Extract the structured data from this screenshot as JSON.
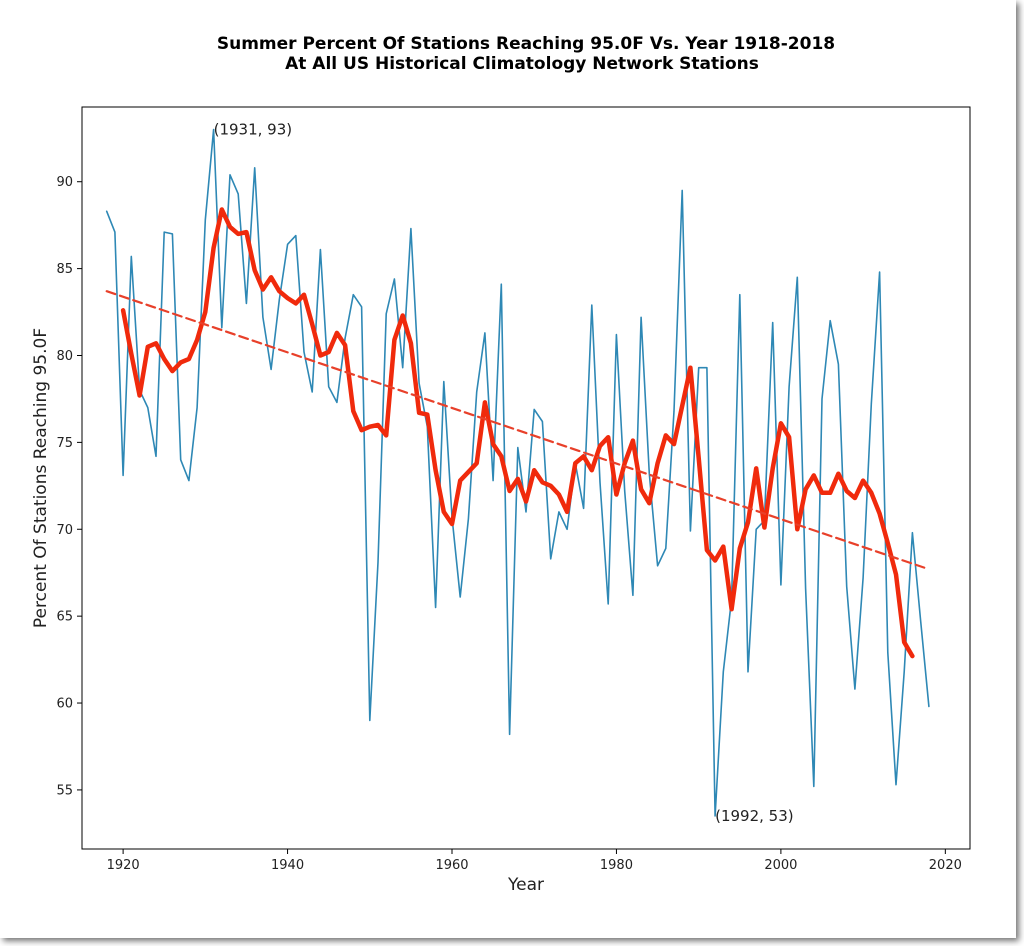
{
  "chart_data": {
    "type": "line",
    "title_lines": [
      "Summer Percent Of Stations Reaching 95.0F Vs. Year 1918-2018",
      "At All US Historical Climatology Network Stations"
    ],
    "xlabel": "Year",
    "ylabel": "Percent Of Stations Reaching 95.0F",
    "xlim": [
      1915,
      2023
    ],
    "ylim": [
      51.6,
      94.3
    ],
    "xticks": [
      1920,
      1940,
      1960,
      1980,
      2000,
      2020
    ],
    "yticks": [
      55,
      60,
      65,
      70,
      75,
      80,
      85,
      90
    ],
    "grid": false,
    "series": [
      {
        "style": "thin-line",
        "color": "#2e88b5",
        "x": [
          1918,
          1919,
          1920,
          1921,
          1922,
          1923,
          1924,
          1925,
          1926,
          1927,
          1928,
          1929,
          1930,
          1931,
          1932,
          1933,
          1934,
          1935,
          1936,
          1937,
          1938,
          1939,
          1940,
          1941,
          1942,
          1943,
          1944,
          1945,
          1946,
          1947,
          1948,
          1949,
          1950,
          1951,
          1952,
          1953,
          1954,
          1955,
          1956,
          1957,
          1958,
          1959,
          1960,
          1961,
          1962,
          1963,
          1964,
          1965,
          1966,
          1967,
          1968,
          1969,
          1970,
          1971,
          1972,
          1973,
          1974,
          1975,
          1976,
          1977,
          1978,
          1979,
          1980,
          1981,
          1982,
          1983,
          1984,
          1985,
          1986,
          1987,
          1988,
          1989,
          1990,
          1991,
          1992,
          1993,
          1994,
          1995,
          1996,
          1997,
          1998,
          1999,
          2000,
          2001,
          2002,
          2003,
          2004,
          2005,
          2006,
          2007,
          2008,
          2009,
          2010,
          2011,
          2012,
          2013,
          2014,
          2015,
          2016,
          2017,
          2018
        ],
        "y": [
          88.3,
          87.1,
          73.1,
          85.7,
          78.0,
          77.0,
          74.2,
          87.1,
          87.0,
          74.0,
          72.8,
          77.0,
          87.8,
          93.0,
          81.6,
          90.4,
          89.3,
          83.0,
          90.8,
          82.2,
          79.2,
          83.2,
          86.4,
          86.9,
          80.2,
          77.9,
          86.1,
          78.2,
          77.3,
          81.0,
          83.5,
          82.8,
          59.0,
          68.1,
          82.4,
          84.4,
          79.3,
          87.3,
          78.4,
          75.9,
          65.5,
          78.5,
          70.7,
          66.1,
          70.6,
          77.9,
          81.3,
          72.8,
          84.1,
          58.2,
          74.7,
          71.0,
          76.9,
          76.2,
          68.3,
          71.0,
          70.0,
          73.8,
          71.2,
          82.9,
          72.7,
          65.7,
          81.2,
          72.2,
          66.2,
          82.2,
          73.2,
          67.9,
          68.9,
          76.8,
          89.5,
          69.9,
          79.3,
          79.3,
          53.5,
          61.8,
          66.0,
          83.5,
          61.8,
          70.0,
          70.5,
          81.9,
          66.8,
          78.2,
          84.5,
          66.6,
          55.2,
          77.5,
          82.0,
          79.5,
          66.7,
          60.8,
          67.2,
          77.2,
          84.8,
          62.9,
          55.3,
          61.8,
          69.8,
          64.7,
          59.8
        ]
      },
      {
        "style": "thick-line",
        "color": "#f02a0c",
        "x": [
          1920,
          1921,
          1922,
          1923,
          1924,
          1925,
          1926,
          1927,
          1928,
          1929,
          1930,
          1931,
          1932,
          1933,
          1934,
          1935,
          1936,
          1937,
          1938,
          1939,
          1940,
          1941,
          1942,
          1943,
          1944,
          1945,
          1946,
          1947,
          1948,
          1949,
          1950,
          1951,
          1952,
          1953,
          1954,
          1955,
          1956,
          1957,
          1958,
          1959,
          1960,
          1961,
          1962,
          1963,
          1964,
          1965,
          1966,
          1967,
          1968,
          1969,
          1970,
          1971,
          1972,
          1973,
          1974,
          1975,
          1976,
          1977,
          1978,
          1979,
          1980,
          1981,
          1982,
          1983,
          1984,
          1985,
          1986,
          1987,
          1988,
          1989,
          1990,
          1991,
          1992,
          1993,
          1994,
          1995,
          1996,
          1997,
          1998,
          1999,
          2000,
          2001,
          2002,
          2003,
          2004,
          2005,
          2006,
          2007,
          2008,
          2009,
          2010,
          2011,
          2012,
          2013,
          2014,
          2015,
          2016
        ],
        "y": [
          82.6,
          80.1,
          77.7,
          80.5,
          80.7,
          79.8,
          79.1,
          79.6,
          79.8,
          80.9,
          82.5,
          86.2,
          88.4,
          87.4,
          87.0,
          87.1,
          84.9,
          83.8,
          84.5,
          83.7,
          83.3,
          83.0,
          83.5,
          81.8,
          80.0,
          80.2,
          81.3,
          80.6,
          76.8,
          75.7,
          75.9,
          76.0,
          75.4,
          80.9,
          82.3,
          80.7,
          76.7,
          76.6,
          73.4,
          71.0,
          70.3,
          72.8,
          73.3,
          73.8,
          77.3,
          74.9,
          74.2,
          72.2,
          72.9,
          71.6,
          73.4,
          72.7,
          72.5,
          72.0,
          71.0,
          73.8,
          74.2,
          73.4,
          74.8,
          75.3,
          72.0,
          73.8,
          75.1,
          72.3,
          71.5,
          73.8,
          75.4,
          74.9,
          77.1,
          79.3,
          74.1,
          68.8,
          68.2,
          69.0,
          65.4,
          68.9,
          70.4,
          73.5,
          70.1,
          73.5,
          76.1,
          75.3,
          70.0,
          72.3,
          73.1,
          72.1,
          72.1,
          73.2,
          72.2,
          71.8,
          72.8,
          72.1,
          70.9,
          69.2,
          67.4,
          63.5,
          62.7
        ]
      },
      {
        "style": "dashed-trend",
        "color": "#e8402a",
        "x": [
          1918,
          2018
        ],
        "y": [
          83.7,
          67.7
        ]
      }
    ],
    "annotations": [
      {
        "text": "(1931, 93)",
        "x": 1931,
        "y": 93.0
      },
      {
        "text": "(1992, 53)",
        "x": 1992,
        "y": 53.5
      }
    ]
  }
}
